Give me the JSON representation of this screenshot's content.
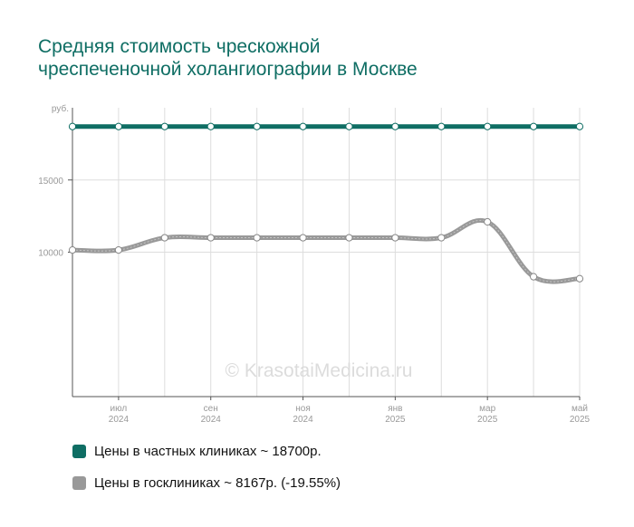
{
  "title_lines": [
    "Средняя стоимость чрескожной",
    "чреспеченочной холангиографии в Москве"
  ],
  "watermark": "© KrasotaiMedicina.ru",
  "colors": {
    "title": "#0f6e64",
    "private": "#0f6e64",
    "public": "#999999",
    "grid": "#dddddd",
    "axis": "#555555",
    "tick_text": "#999999"
  },
  "legend": [
    {
      "label": "Цены в частных клиниках ~ 18700р.",
      "color": "#0f6e64"
    },
    {
      "label": "Цены в госклиниках ~ 8167р. (-19.55%)",
      "color": "#999999"
    }
  ],
  "chart_data": {
    "type": "line",
    "ylim": [
      0,
      20000
    ],
    "y_unit_label": "руб.",
    "y_ticks": [
      {
        "value": 10000,
        "label": "10000"
      },
      {
        "value": 15000,
        "label": "15000"
      }
    ],
    "x_tick_labels": [
      {
        "index": 1,
        "month": "июл",
        "year": "2024"
      },
      {
        "index": 3,
        "month": "сен",
        "year": "2024"
      },
      {
        "index": 5,
        "month": "ноя",
        "year": "2024"
      },
      {
        "index": 7,
        "month": "янв",
        "year": "2025"
      },
      {
        "index": 9,
        "month": "мар",
        "year": "2025"
      },
      {
        "index": 11,
        "month": "май",
        "year": "2025"
      }
    ],
    "x_count": 12,
    "grid": true,
    "series": [
      {
        "name": "Цены в частных клиниках",
        "values": [
          18700,
          18700,
          18700,
          18700,
          18700,
          18700,
          18700,
          18700,
          18700,
          18700,
          18700,
          18700
        ]
      },
      {
        "name": "Цены в госклиниках",
        "values": [
          10150,
          10150,
          11000,
          11000,
          11000,
          11000,
          11000,
          11000,
          11000,
          12100,
          8300,
          8167
        ]
      }
    ]
  }
}
